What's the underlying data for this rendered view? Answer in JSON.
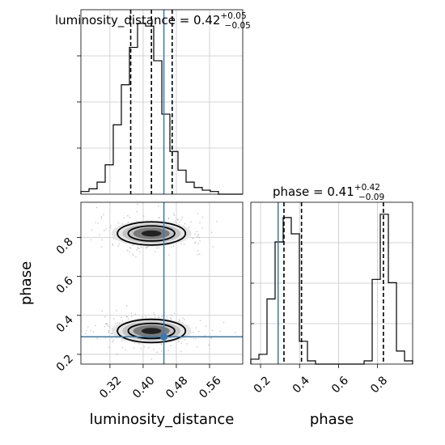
{
  "colors": {
    "truth": "#3a78ae",
    "hist": "#000000",
    "grid": "#c8c8c8",
    "points": "#888888"
  },
  "chart_data": [
    {
      "type": "histogram",
      "panel": "luminosity_distance-marginal",
      "title_name": "luminosity_distance = 0.42",
      "title_plus": "+0.05",
      "title_minus": "−0.05",
      "xlim": [
        0.25,
        0.64
      ],
      "bins": [
        0.25,
        0.2695,
        0.289,
        0.3085,
        0.328,
        0.3475,
        0.367,
        0.3865,
        0.406,
        0.4255,
        0.445,
        0.4645,
        0.484,
        0.5035,
        0.523,
        0.5425,
        0.562,
        0.5815,
        0.601,
        0.6205,
        0.64
      ],
      "counts": [
        2,
        4,
        9,
        22,
        52,
        82,
        110,
        128,
        126,
        100,
        60,
        32,
        18,
        9,
        5,
        3,
        2,
        0,
        0,
        0
      ],
      "quantiles": [
        0.37,
        0.42,
        0.47
      ],
      "truth": 0.45
    },
    {
      "type": "scatter-density",
      "panel": "phase-vs-luminosity_distance",
      "xlabel": "luminosity_distance",
      "ylabel": "phase",
      "xlim": [
        0.25,
        0.64
      ],
      "ylim": [
        0.15,
        0.98
      ],
      "xticks": [
        "0.32",
        "0.40",
        "0.48",
        "0.56"
      ],
      "xtick_values": [
        0.32,
        0.4,
        0.48,
        0.56
      ],
      "yticks": [
        "0.2",
        "0.4",
        "0.6",
        "0.8"
      ],
      "ytick_values": [
        0.2,
        0.4,
        0.6,
        0.8
      ],
      "modes": [
        {
          "x": 0.42,
          "y": 0.82,
          "sx": 0.04,
          "sy": 0.035
        },
        {
          "x": 0.42,
          "y": 0.32,
          "sx": 0.04,
          "sy": 0.035
        }
      ],
      "truth": [
        0.45,
        0.29
      ]
    },
    {
      "type": "histogram",
      "panel": "phase-marginal",
      "title_name": "phase = 0.41",
      "title_plus": "+0.42",
      "title_minus": "−0.09",
      "xlabel": "phase",
      "xlim": [
        0.15,
        0.98
      ],
      "xticks": [
        "0.2",
        "0.4",
        "0.6",
        "0.8"
      ],
      "xtick_values": [
        0.2,
        0.4,
        0.6,
        0.8
      ],
      "bins": [
        0.15,
        0.1915,
        0.233,
        0.2745,
        0.316,
        0.3575,
        0.399,
        0.4405,
        0.482,
        0.5235,
        0.565,
        0.6065,
        0.648,
        0.6895,
        0.731,
        0.7725,
        0.814,
        0.8555,
        0.897,
        0.9385,
        0.98
      ],
      "counts": [
        3,
        6,
        40,
        75,
        90,
        80,
        14,
        2,
        0,
        0,
        0,
        0,
        0,
        0,
        2,
        52,
        92,
        50,
        8,
        2
      ],
      "quantiles": [
        0.32,
        0.41,
        0.83
      ],
      "truth": 0.29
    }
  ]
}
